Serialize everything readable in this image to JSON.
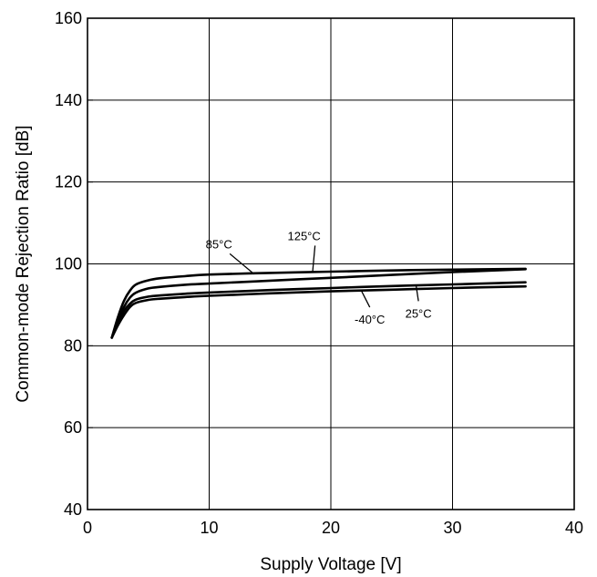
{
  "chart_data": {
    "type": "line",
    "title": "",
    "xlabel": "Supply Voltage [V]",
    "ylabel": "Common-mode Rejection Ratio [dB]",
    "xlim": [
      0,
      40
    ],
    "ylim": [
      40,
      160
    ],
    "xticks": [
      0,
      10,
      20,
      30,
      40
    ],
    "yticks": [
      40,
      60,
      80,
      100,
      120,
      140,
      160
    ],
    "xtick_labels": [
      "0",
      "10",
      "20",
      "30",
      "40"
    ],
    "ytick_labels": [
      "40",
      "60",
      "80",
      "100",
      "120",
      "140",
      "160"
    ],
    "grid": true,
    "legend": "none",
    "series": [
      {
        "name": "85°C",
        "x": [
          2,
          2.5,
          3,
          3.5,
          4,
          5,
          6,
          8,
          10,
          15,
          20,
          25,
          30,
          36
        ],
        "y": [
          82,
          87,
          91,
          93.5,
          95,
          96,
          96.5,
          97,
          97.4,
          97.8,
          98.1,
          98.4,
          98.6,
          98.8
        ]
      },
      {
        "name": "125°C",
        "x": [
          2,
          2.5,
          3,
          3.5,
          4,
          5,
          6,
          8,
          10,
          15,
          20,
          25,
          30,
          36
        ],
        "y": [
          82,
          86,
          89.5,
          91.8,
          93,
          94,
          94.4,
          94.9,
          95.2,
          95.9,
          96.6,
          97.3,
          98,
          98.7
        ]
      },
      {
        "name": "25°C",
        "x": [
          2,
          2.5,
          3,
          3.5,
          4,
          5,
          6,
          8,
          10,
          15,
          20,
          25,
          30,
          36
        ],
        "y": [
          82,
          85.5,
          88.5,
          90.3,
          91.3,
          92,
          92.3,
          92.7,
          93,
          93.6,
          94.1,
          94.6,
          95,
          95.5
        ]
      },
      {
        "name": "-40°C",
        "x": [
          2,
          2.5,
          3,
          3.5,
          4,
          5,
          6,
          8,
          10,
          15,
          20,
          25,
          30,
          36
        ],
        "y": [
          82,
          85,
          87.5,
          89.5,
          90.5,
          91.2,
          91.5,
          91.9,
          92.2,
          92.8,
          93.3,
          93.7,
          94.1,
          94.5
        ]
      }
    ],
    "annotations": [
      {
        "text": "85°C",
        "x": 10.8,
        "y": 103.8,
        "anchor_x": 13.7,
        "anchor_y": 97.5
      },
      {
        "text": "125°C",
        "x": 17.8,
        "y": 105.8,
        "anchor_x": 18.5,
        "anchor_y": 98.0
      },
      {
        "text": "25°C",
        "x": 27.2,
        "y": 86.9,
        "anchor_x": 27.0,
        "anchor_y": 94.8
      },
      {
        "text": "-40°C",
        "x": 23.2,
        "y": 85.4,
        "anchor_x": 22.5,
        "anchor_y": 93.5
      }
    ]
  }
}
